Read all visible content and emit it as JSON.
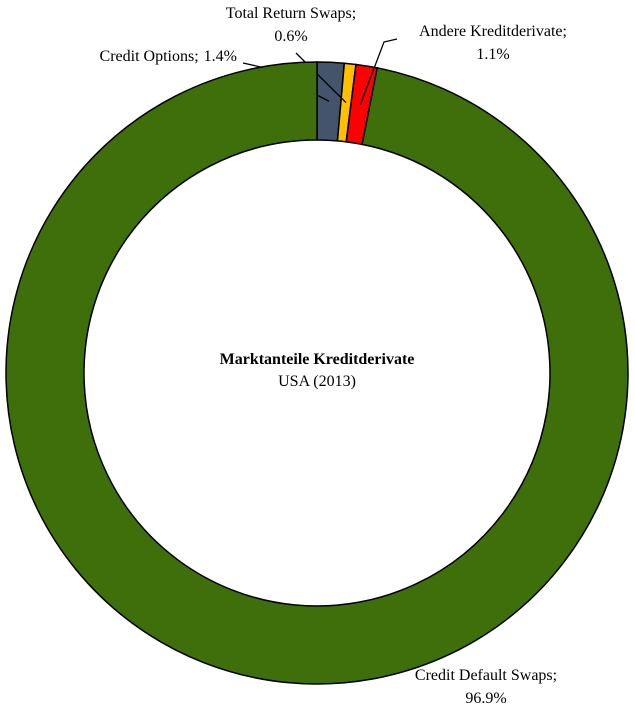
{
  "chart_data": {
    "type": "donut",
    "title": "Marktanteile Kreditderivate",
    "subtitle": "USA (2013)",
    "categories": [
      "Credit Options",
      "Total Return Swaps",
      "Andere Kreditderivate",
      "Credit Default Swaps"
    ],
    "values": [
      1.4,
      0.6,
      1.1,
      96.9
    ],
    "value_labels": [
      "1.4%",
      "0.6%",
      "1.1%",
      "96.9%"
    ],
    "label_separator": ";",
    "colors": [
      "#44546a",
      "#ffc000",
      "#ff0000",
      "#3f6f0b"
    ]
  }
}
